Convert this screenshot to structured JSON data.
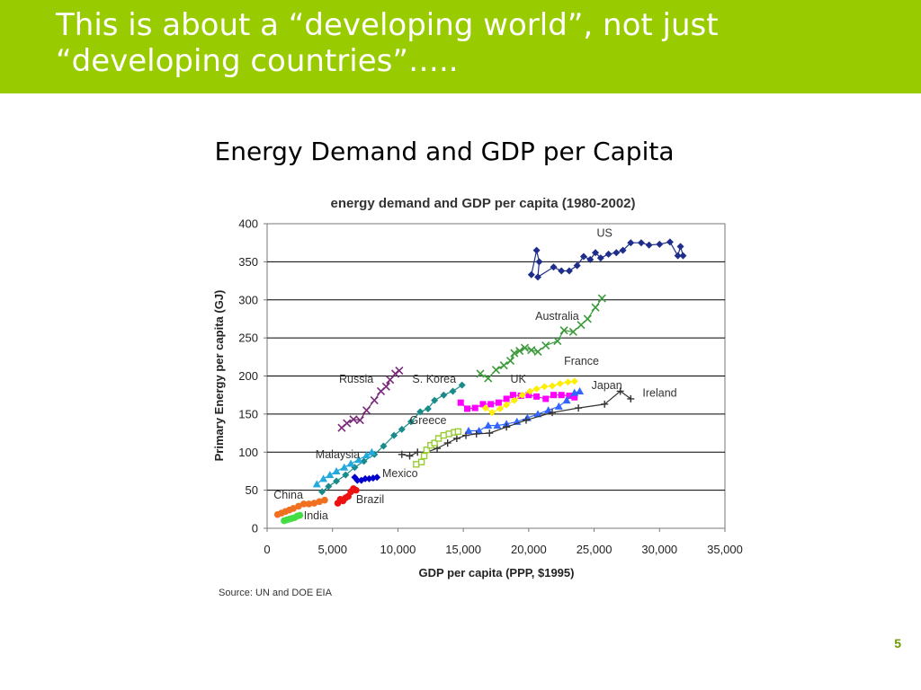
{
  "slide": {
    "title_line1": "This is about a “developing world”, not just",
    "title_line2": "“developing countries”…..",
    "subtitle": "Energy Demand and GDP per Capita",
    "page_number": "5",
    "banner_color": "#99cc00"
  },
  "chart_data": {
    "type": "scatter",
    "title": "energy demand and GDP per capita (1980-2002)",
    "xlabel": "GDP per capita (PPP, $1995)",
    "ylabel": "Primary Energy per capita (GJ)",
    "source": "Source: UN and DOE EIA",
    "xlim": [
      0,
      35000
    ],
    "ylim": [
      0,
      400
    ],
    "xticks": [
      0,
      5000,
      10000,
      15000,
      20000,
      25000,
      30000,
      35000
    ],
    "xtick_labels": [
      "0",
      "5,000",
      "10,000",
      "15,000",
      "20,000",
      "25,000",
      "30,000",
      "35,000"
    ],
    "yticks": [
      0,
      50,
      100,
      150,
      200,
      250,
      300,
      350,
      400
    ],
    "ytick_labels": [
      "0",
      "50",
      "100",
      "150",
      "200",
      "250",
      "300",
      "350",
      "400"
    ],
    "grid": "horizontal",
    "series": [
      {
        "name": "US",
        "color": "#1f2e8a",
        "marker": "diamond",
        "label_pos": [
          25200,
          383
        ],
        "points": [
          [
            20200,
            333
          ],
          [
            20600,
            365
          ],
          [
            20800,
            350
          ],
          [
            20700,
            330
          ],
          [
            21900,
            343
          ],
          [
            22500,
            338
          ],
          [
            23100,
            338
          ],
          [
            23700,
            345
          ],
          [
            24200,
            357
          ],
          [
            24700,
            353
          ],
          [
            25100,
            362
          ],
          [
            25500,
            355
          ],
          [
            26100,
            360
          ],
          [
            26700,
            362
          ],
          [
            27200,
            365
          ],
          [
            27800,
            375
          ],
          [
            28600,
            375
          ],
          [
            29200,
            372
          ],
          [
            30000,
            373
          ],
          [
            30800,
            376
          ],
          [
            31400,
            358
          ],
          [
            31600,
            370
          ],
          [
            31800,
            358
          ]
        ]
      },
      {
        "name": "Australia",
        "color": "#3a9a3a",
        "marker": "x",
        "label_pos": [
          20500,
          274
        ],
        "points": [
          [
            16300,
            203
          ],
          [
            16900,
            197
          ],
          [
            17500,
            208
          ],
          [
            18100,
            214
          ],
          [
            18600,
            220
          ],
          [
            18900,
            230
          ],
          [
            19300,
            233
          ],
          [
            19700,
            237
          ],
          [
            20200,
            234
          ],
          [
            20700,
            232
          ],
          [
            21300,
            240
          ],
          [
            22200,
            246
          ],
          [
            22700,
            260
          ],
          [
            23400,
            258
          ],
          [
            24000,
            267
          ],
          [
            24500,
            275
          ],
          [
            25100,
            290
          ],
          [
            25600,
            302
          ]
        ]
      },
      {
        "name": "Russia",
        "color": "#7a2a7a",
        "marker": "x",
        "label_pos": [
          5500,
          191
        ],
        "points": [
          [
            5700,
            132
          ],
          [
            6100,
            138
          ],
          [
            6600,
            143
          ],
          [
            7100,
            142
          ],
          [
            7600,
            155
          ],
          [
            8200,
            168
          ],
          [
            8700,
            180
          ],
          [
            9100,
            186
          ],
          [
            9400,
            195
          ],
          [
            9800,
            203
          ],
          [
            10100,
            207
          ]
        ]
      },
      {
        "name": "S. Korea",
        "color": "#1a8a8a",
        "marker": "diamond",
        "label_pos": [
          11100,
          191
        ],
        "points": [
          [
            4200,
            48
          ],
          [
            4700,
            55
          ],
          [
            5300,
            62
          ],
          [
            6000,
            70
          ],
          [
            6700,
            80
          ],
          [
            7400,
            88
          ],
          [
            8200,
            97
          ],
          [
            8900,
            108
          ],
          [
            9700,
            122
          ],
          [
            10300,
            130
          ],
          [
            11000,
            140
          ],
          [
            11700,
            153
          ],
          [
            12300,
            157
          ],
          [
            12800,
            168
          ],
          [
            13500,
            175
          ],
          [
            14200,
            180
          ],
          [
            14900,
            188
          ]
        ]
      },
      {
        "name": "UK",
        "color": "#ff00ff",
        "marker": "square",
        "label_pos": [
          18600,
          191
        ],
        "points": [
          [
            14800,
            165
          ],
          [
            15300,
            157
          ],
          [
            15900,
            158
          ],
          [
            16500,
            163
          ],
          [
            17100,
            163
          ],
          [
            17700,
            165
          ],
          [
            18300,
            170
          ],
          [
            18800,
            175
          ],
          [
            19400,
            174
          ],
          [
            20000,
            175
          ],
          [
            20600,
            173
          ],
          [
            21300,
            170
          ],
          [
            21900,
            175
          ],
          [
            22500,
            175
          ],
          [
            23100,
            174
          ],
          [
            23500,
            172
          ]
        ]
      },
      {
        "name": "France",
        "color": "#ffee00",
        "marker": "diamond",
        "label_pos": [
          22700,
          215
        ],
        "points": [
          [
            16700,
            158
          ],
          [
            17200,
            152
          ],
          [
            17800,
            157
          ],
          [
            18300,
            162
          ],
          [
            18900,
            168
          ],
          [
            19500,
            175
          ],
          [
            20100,
            180
          ],
          [
            20600,
            183
          ],
          [
            21200,
            186
          ],
          [
            21800,
            187
          ],
          [
            22400,
            190
          ],
          [
            23000,
            192
          ],
          [
            23500,
            193
          ]
        ]
      },
      {
        "name": "Japan",
        "color": "#3366ff",
        "marker": "triangle",
        "label_pos": [
          24800,
          183
        ],
        "points": [
          [
            15400,
            128
          ],
          [
            16200,
            128
          ],
          [
            16900,
            135
          ],
          [
            17600,
            135
          ],
          [
            18300,
            137
          ],
          [
            19100,
            140
          ],
          [
            19900,
            145
          ],
          [
            20700,
            150
          ],
          [
            21500,
            155
          ],
          [
            22300,
            160
          ],
          [
            22900,
            168
          ],
          [
            23500,
            178
          ],
          [
            23900,
            180
          ]
        ]
      },
      {
        "name": "Ireland",
        "color": "#333333",
        "marker": "plus",
        "label_pos": [
          28700,
          173
        ],
        "points": [
          [
            10300,
            97
          ],
          [
            10900,
            95
          ],
          [
            11500,
            100
          ],
          [
            12200,
            100
          ],
          [
            13000,
            105
          ],
          [
            13800,
            112
          ],
          [
            14500,
            118
          ],
          [
            15200,
            122
          ],
          [
            16000,
            124
          ],
          [
            17000,
            125
          ],
          [
            18300,
            133
          ],
          [
            19800,
            142
          ],
          [
            21800,
            152
          ],
          [
            23800,
            158
          ],
          [
            25800,
            163
          ],
          [
            27000,
            180
          ],
          [
            27800,
            170
          ]
        ]
      },
      {
        "name": "Greece",
        "color": "#99cc33",
        "marker": "square-open",
        "label_pos": [
          10900,
          137
        ],
        "points": [
          [
            11400,
            84
          ],
          [
            11800,
            87
          ],
          [
            12000,
            95
          ],
          [
            12200,
            103
          ],
          [
            12500,
            109
          ],
          [
            12800,
            112
          ],
          [
            13100,
            118
          ],
          [
            13500,
            122
          ],
          [
            13900,
            124
          ],
          [
            14300,
            126
          ],
          [
            14600,
            127
          ]
        ]
      },
      {
        "name": "Malaysia",
        "color": "#22aadd",
        "marker": "triangle",
        "label_pos": [
          3700,
          92
        ],
        "points": [
          [
            3800,
            58
          ],
          [
            4300,
            65
          ],
          [
            4800,
            70
          ],
          [
            5300,
            75
          ],
          [
            5900,
            80
          ],
          [
            6400,
            85
          ],
          [
            7000,
            90
          ],
          [
            7600,
            96
          ],
          [
            8000,
            100
          ]
        ]
      },
      {
        "name": "Mexico",
        "color": "#0000cc",
        "marker": "diamond",
        "label_pos": [
          8800,
          67
        ],
        "points": [
          [
            6700,
            67
          ],
          [
            6900,
            63
          ],
          [
            7200,
            63
          ],
          [
            7500,
            65
          ],
          [
            7800,
            65
          ],
          [
            8100,
            66
          ],
          [
            8400,
            67
          ]
        ]
      },
      {
        "name": "China",
        "color": "#f07020",
        "marker": "circle",
        "label_pos": [
          500,
          39
        ],
        "points": [
          [
            800,
            18
          ],
          [
            1100,
            20
          ],
          [
            1400,
            22
          ],
          [
            1700,
            24
          ],
          [
            2000,
            26
          ],
          [
            2400,
            29
          ],
          [
            2800,
            32
          ],
          [
            3200,
            32
          ],
          [
            3600,
            33
          ],
          [
            4000,
            35
          ],
          [
            4400,
            37
          ]
        ]
      },
      {
        "name": "Brazil",
        "color": "#ee1111",
        "marker": "circle",
        "label_pos": [
          6800,
          33
        ],
        "points": [
          [
            5400,
            33
          ],
          [
            5600,
            38
          ],
          [
            5800,
            36
          ],
          [
            6000,
            40
          ],
          [
            6200,
            42
          ],
          [
            6400,
            48
          ],
          [
            6600,
            52
          ],
          [
            6800,
            50
          ]
        ]
      },
      {
        "name": "India",
        "color": "#44dd44",
        "marker": "circle",
        "label_pos": [
          2800,
          12
        ],
        "points": [
          [
            1300,
            10
          ],
          [
            1500,
            11
          ],
          [
            1700,
            12
          ],
          [
            1900,
            13
          ],
          [
            2100,
            14
          ],
          [
            2300,
            16
          ],
          [
            2500,
            17
          ]
        ]
      }
    ]
  }
}
